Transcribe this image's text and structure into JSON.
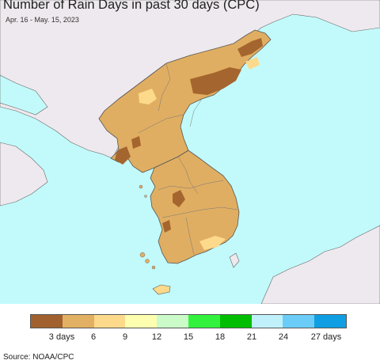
{
  "title": "Number of Rain Days in past 30 days (CPC)",
  "subtitle": "Apr. 16 - May. 15, 2023",
  "source": "Source: NOAA/CPC",
  "legend": {
    "colors": [
      "#a0612e",
      "#e2b062",
      "#fdd98b",
      "#fefeb0",
      "#cbfbc8",
      "#33f23e",
      "#02be02",
      "#c0f1fa",
      "#6bcdf7",
      "#0f9ee2"
    ],
    "labels": [
      "3 days",
      "6",
      "9",
      "12",
      "15",
      "18",
      "21",
      "24",
      "27 days"
    ]
  },
  "map_colors": {
    "sea": "#c2fafb",
    "land_outside": "#eee9ee",
    "land_tan": "#e0ae62",
    "dry_brown": "#a5652e",
    "light_tan": "#fdd98b",
    "border": "#555555"
  }
}
